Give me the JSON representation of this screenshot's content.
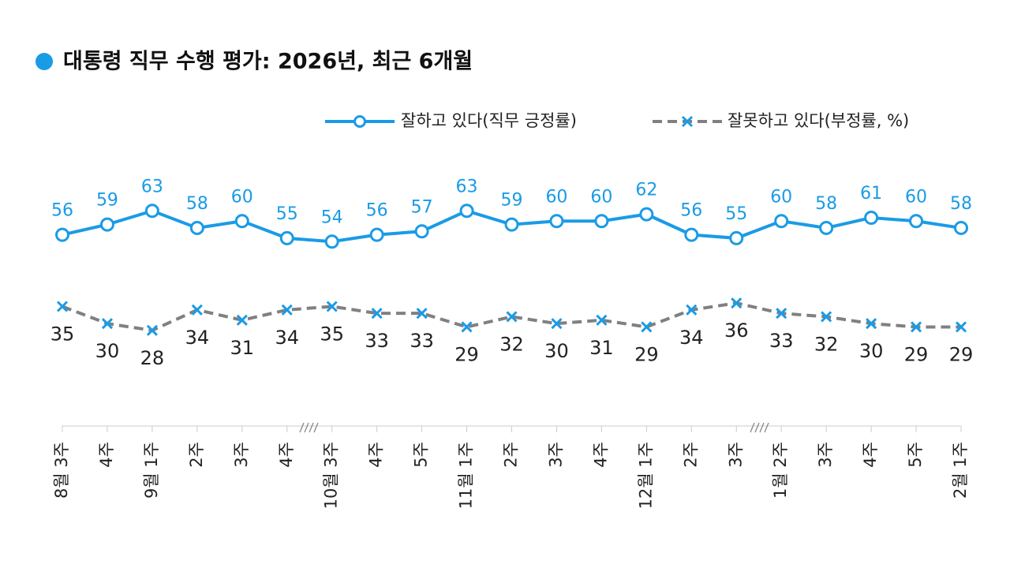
{
  "chart_data": {
    "type": "line",
    "title": "대통령 직무 수행 평가: 2026년, 최근 6개월",
    "categories": [
      "8월 3주",
      "4주",
      "9월 1주",
      "2주",
      "3주",
      "4주",
      "10월 3주",
      "4주",
      "5주",
      "11월 1주",
      "2주",
      "3주",
      "4주",
      "12월 1주",
      "2주",
      "3주",
      "1월 2주",
      "3주",
      "4주",
      "5주",
      "2월 1주"
    ],
    "series": [
      {
        "name": "잘하고 있다(직무 긍정률)",
        "color": "#1a9be6",
        "values": [
          56,
          59,
          63,
          58,
          60,
          55,
          54,
          56,
          57,
          63,
          59,
          60,
          60,
          62,
          56,
          55,
          60,
          58,
          61,
          60,
          58
        ]
      },
      {
        "name": "잘못하고 있다(부정률, %)",
        "color": "#808080",
        "values": [
          35,
          30,
          28,
          34,
          31,
          34,
          35,
          33,
          33,
          29,
          32,
          30,
          31,
          29,
          34,
          36,
          33,
          32,
          30,
          29,
          29
        ]
      }
    ],
    "ylim": [
      0,
      70
    ],
    "legend": "top-right"
  }
}
